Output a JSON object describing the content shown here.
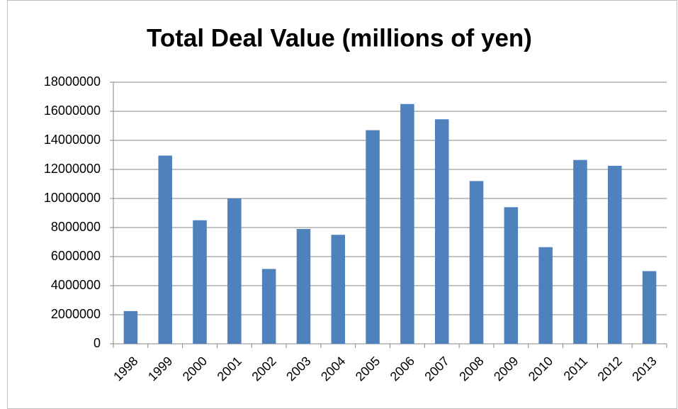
{
  "chart_data": {
    "type": "bar",
    "title": "Total Deal Value (millions of yen)",
    "categories": [
      "1998",
      "1999",
      "2000",
      "2001",
      "2002",
      "2003",
      "2004",
      "2005",
      "2006",
      "2007",
      "2008",
      "2009",
      "2010",
      "2011",
      "2012",
      "2013"
    ],
    "values": [
      2250000,
      12950000,
      8500000,
      10000000,
      5150000,
      7900000,
      7500000,
      14700000,
      16500000,
      15450000,
      11200000,
      9400000,
      6650000,
      12650000,
      12250000,
      5000000
    ],
    "color": "#4f81bd",
    "ylim": [
      0,
      18000000
    ],
    "yticks": [
      0,
      2000000,
      4000000,
      6000000,
      8000000,
      10000000,
      12000000,
      14000000,
      16000000,
      18000000
    ],
    "grid": true
  }
}
